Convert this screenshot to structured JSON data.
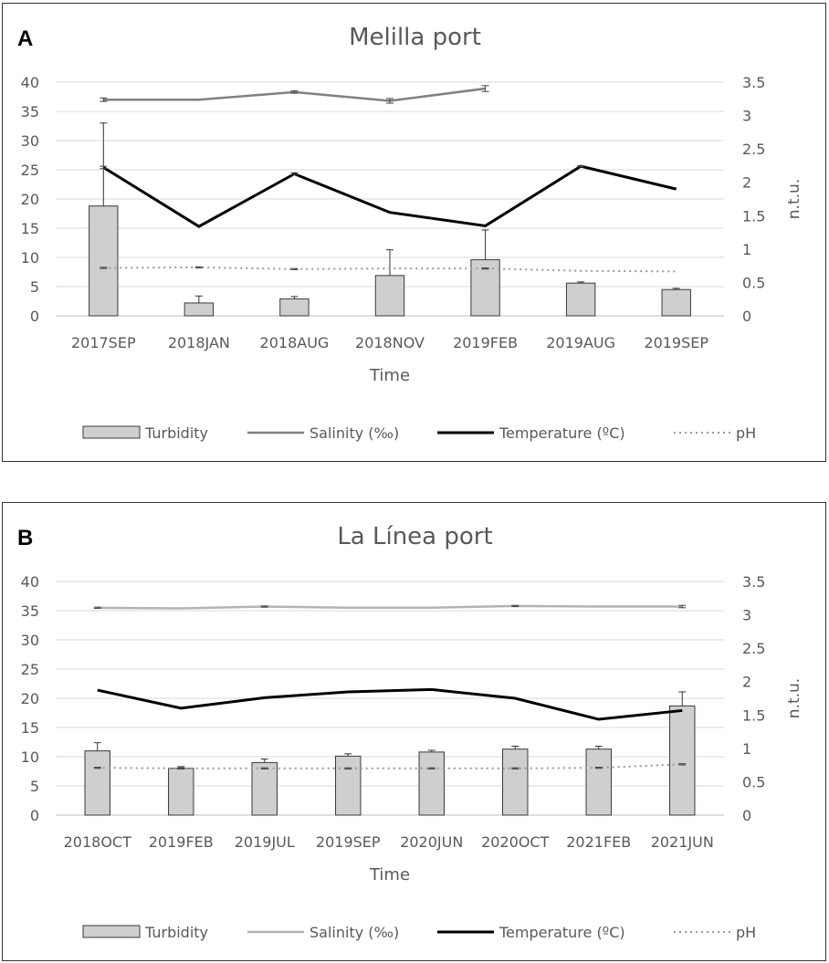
{
  "chart_data": [
    {
      "type": "bar+line",
      "panel_label": "A",
      "title": "Melilla port",
      "xlabel": "Time",
      "y2label": "n.t.u.",
      "ylim": [
        0,
        40
      ],
      "y2lim": [
        0,
        3.5
      ],
      "yticks": [
        "0",
        "5",
        "10",
        "15",
        "20",
        "25",
        "30",
        "35",
        "40"
      ],
      "y2ticks": [
        "0",
        "0.5",
        "1",
        "1.5",
        "2",
        "2.5",
        "3",
        "3.5"
      ],
      "categories": [
        "2017SEP",
        "2018JAN",
        "2018AUG",
        "2018NOV",
        "2019FEB",
        "2019AUG",
        "2019SEP"
      ],
      "series": [
        {
          "name": "Turbidity",
          "kind": "bar",
          "color": "#d0cece",
          "values": [
            18.8,
            2.2,
            2.9,
            6.9,
            9.6,
            5.6,
            4.5
          ],
          "errors": [
            14.2,
            1.2,
            0.4,
            4.4,
            5.1,
            0.2,
            0.2
          ]
        },
        {
          "name": "Salinity (‰)",
          "kind": "line",
          "color": "#808080",
          "values": [
            37.0,
            37.0,
            38.3,
            36.8,
            38.9,
            null,
            null
          ],
          "errors": [
            0.3,
            0,
            0.2,
            0.4,
            0.5,
            null,
            null
          ]
        },
        {
          "name": "Temperature (ºC)",
          "kind": "line",
          "color": "#000000",
          "values": [
            25.4,
            15.3,
            24.3,
            17.7,
            15.4,
            25.6,
            21.7
          ],
          "errors": [
            0.2,
            0,
            0.2,
            0,
            0,
            0.1,
            0
          ]
        },
        {
          "name": "pH",
          "kind": "dotted",
          "color": "#999999",
          "values": [
            8.2,
            8.3,
            8.0,
            8.1,
            8.1,
            7.7,
            7.6
          ],
          "errors": [
            0.1,
            0.1,
            0.1,
            0,
            0.1,
            0,
            0
          ]
        }
      ],
      "legend": [
        "Turbidity",
        "Salinity (‰)",
        "Temperature (ºC)",
        "pH"
      ]
    },
    {
      "type": "bar+line",
      "panel_label": "B",
      "title": "La Línea port",
      "xlabel": "Time",
      "y2label": "n.t.u.",
      "ylim": [
        0,
        40
      ],
      "y2lim": [
        0,
        3.5
      ],
      "yticks": [
        "0",
        "5",
        "10",
        "15",
        "20",
        "25",
        "30",
        "35",
        "40"
      ],
      "y2ticks": [
        "0",
        "0.5",
        "1",
        "1.5",
        "2",
        "2.5",
        "3",
        "3.5"
      ],
      "categories": [
        "2018OCT",
        "2019FEB",
        "2019JUL",
        "2019SEP",
        "2020JUN",
        "2020OCT",
        "2021FEB",
        "2021JUN"
      ],
      "series": [
        {
          "name": "Turbidity",
          "kind": "bar",
          "color": "#d0cece",
          "values": [
            11.0,
            8.0,
            9.0,
            10.1,
            10.8,
            11.3,
            11.3,
            18.7
          ],
          "errors": [
            1.4,
            0.3,
            0.6,
            0.4,
            0.3,
            0.5,
            0.5,
            2.4
          ]
        },
        {
          "name": "Salinity (‰)",
          "kind": "line",
          "color": "#b4b4b4",
          "values": [
            35.5,
            35.4,
            35.7,
            35.5,
            35.5,
            35.8,
            35.7,
            35.7
          ],
          "errors": [
            0.1,
            0,
            0.1,
            0,
            0,
            0.1,
            0,
            0.2
          ]
        },
        {
          "name": "Temperature (ºC)",
          "kind": "line",
          "color": "#000000",
          "values": [
            21.4,
            18.3,
            20.1,
            21.1,
            21.5,
            20.0,
            16.4,
            17.9
          ],
          "errors": [
            0,
            0,
            0,
            0,
            0,
            0,
            0,
            0
          ]
        },
        {
          "name": "pH",
          "kind": "dotted",
          "color": "#999999",
          "values": [
            8.1,
            8.0,
            8.0,
            8.0,
            8.0,
            8.0,
            8.1,
            8.7
          ],
          "errors": [
            0.1,
            0.1,
            0.1,
            0.1,
            0.1,
            0.1,
            0.1,
            0.1
          ]
        }
      ],
      "legend": [
        "Turbidity",
        "Salinity (‰)",
        "Temperature (ºC)",
        "pH"
      ]
    }
  ]
}
